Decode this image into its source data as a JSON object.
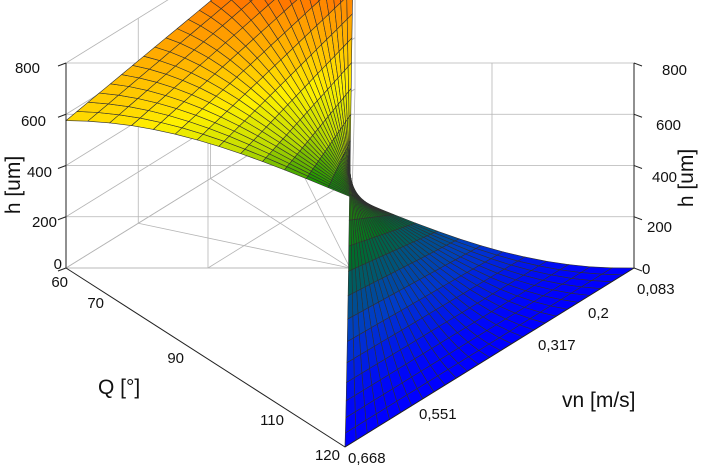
{
  "chart_data": {
    "type": "surface3d",
    "title": "",
    "x_axis": {
      "label": "Q [°]",
      "ticks": [
        "60",
        "70",
        "90",
        "110",
        "120"
      ],
      "tick_values": [
        60,
        70,
        90,
        110,
        120
      ],
      "range": [
        60,
        120
      ]
    },
    "y_axis": {
      "label": "vn [m/s]",
      "ticks": [
        "0,083",
        "0,2",
        "0,317",
        "0,551",
        "0,668"
      ],
      "tick_values": [
        0.083,
        0.2,
        0.317,
        0.551,
        0.668
      ],
      "range": [
        0.083,
        0.668
      ]
    },
    "z_axis": {
      "label": "h [um]",
      "ticks": [
        "0",
        "200",
        "400",
        "600",
        "800"
      ],
      "tick_values": [
        0,
        200,
        400,
        600,
        800
      ],
      "range": [
        0,
        800
      ]
    },
    "corner_heights": {
      "Q60_vn0.083": 575,
      "Q60_vn0.668": 0,
      "Q120_vn0.083": 0,
      "Q120_vn0.668": 0,
      "Q90_vn0.083": 420,
      "peak_Q60_vn0.668_region": 810
    },
    "grid": true,
    "colormap": [
      "#0000ff",
      "#006400",
      "#ffff00",
      "#ff0000"
    ]
  }
}
